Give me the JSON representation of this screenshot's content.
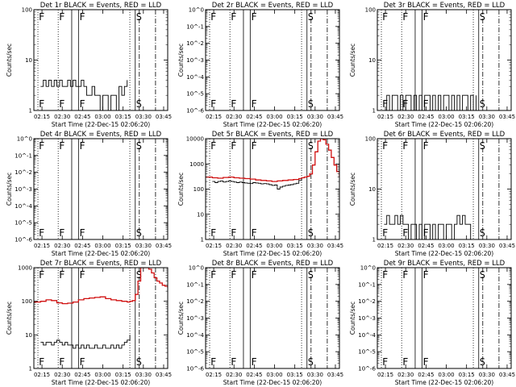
{
  "xlabel": "Start Time (22-Dec-15 02:06:20)",
  "ylabel": "Counts/sec",
  "x_ticks": [
    "02:15",
    "02:30",
    "02:45",
    "03:00",
    "03:15",
    "03:30",
    "03:45"
  ],
  "x_tick_minutes": [
    15,
    30,
    45,
    60,
    75,
    90,
    105
  ],
  "x_range_minutes": [
    9,
    108
  ],
  "event_lines_minutes": [
    {
      "t": 12,
      "style": "dotted",
      "flag": "F"
    },
    {
      "t": 27,
      "style": "dotted",
      "flag": "F"
    },
    {
      "t": 37,
      "style": "solid"
    },
    {
      "t": 42,
      "style": "solid",
      "flag": "F"
    },
    {
      "t": 80,
      "style": "dotted"
    },
    {
      "t": 84,
      "style": "solid",
      "flag": "S"
    },
    {
      "t": 87,
      "style": "dashdot"
    },
    {
      "t": 99,
      "style": "dashdot"
    }
  ],
  "colors": {
    "events": "#000000",
    "lld": "#d01010"
  },
  "chart_data": [
    {
      "type": "line",
      "title": "Det 1r BLACK = Events, RED = LLD",
      "yscale": "log",
      "ylim": [
        1,
        100
      ],
      "y_ticks": [
        1,
        10,
        100
      ],
      "y_tick_labels": [
        "1",
        "10",
        "100"
      ],
      "series": [
        {
          "name": "Events",
          "color": "#000000",
          "x": [
            14,
            16,
            18,
            20,
            22,
            24,
            26,
            28,
            30,
            32,
            34,
            36,
            38,
            40,
            42,
            44,
            46,
            48,
            50,
            52,
            54,
            56,
            58,
            60,
            62,
            64,
            66,
            68,
            70,
            72,
            74,
            76,
            78
          ],
          "y": [
            3,
            4,
            3,
            4,
            3,
            4,
            3,
            4,
            3,
            3,
            4,
            3,
            4,
            3,
            3,
            4,
            3,
            2,
            2,
            3,
            2,
            2,
            1,
            2,
            2,
            1,
            2,
            2,
            1,
            3,
            2,
            3,
            4
          ]
        }
      ]
    },
    {
      "type": "line",
      "title": "Det 2r BLACK = Events, RED = LLD",
      "yscale": "log",
      "ylim": [
        1e-06,
        1
      ],
      "y_ticks": [
        1e-06,
        1e-05,
        0.0001,
        0.001,
        0.01,
        0.1,
        1
      ],
      "y_tick_labels": [
        "10^-6",
        "10^-5",
        "10^-4",
        "10^-3",
        "10^-2",
        "10^-1",
        "10^0"
      ],
      "series": []
    },
    {
      "type": "line",
      "title": "Det 3r BLACK = Events, RED = LLD",
      "yscale": "log",
      "ylim": [
        1,
        100
      ],
      "y_ticks": [
        1,
        10,
        100
      ],
      "y_tick_labels": [
        "1",
        "10",
        "100"
      ],
      "series": [
        {
          "name": "Events",
          "color": "#000000",
          "x": [
            14,
            16,
            18,
            20,
            22,
            24,
            26,
            28,
            30,
            32,
            34,
            36,
            38,
            40,
            42,
            44,
            46,
            48,
            50,
            52,
            54,
            56,
            58,
            60,
            62,
            64,
            66,
            68,
            70,
            72,
            74,
            76,
            78,
            80,
            82
          ],
          "y": [
            1,
            2,
            1,
            2,
            2,
            1,
            2,
            1,
            2,
            2,
            1,
            2,
            1,
            2,
            1,
            2,
            2,
            1,
            2,
            1,
            2,
            1,
            2,
            2,
            1,
            2,
            1,
            2,
            1,
            2,
            2,
            1,
            2,
            1,
            2
          ]
        }
      ]
    },
    {
      "type": "line",
      "title": "Det 4r BLACK = Events, RED = LLD",
      "yscale": "log",
      "ylim": [
        1e-06,
        1
      ],
      "y_ticks": [
        1e-06,
        1e-05,
        0.0001,
        0.001,
        0.01,
        0.1,
        1
      ],
      "y_tick_labels": [
        "10^-6",
        "10^-5",
        "10^-4",
        "10^-3",
        "10^-2",
        "10^-1",
        "10^0"
      ],
      "series": []
    },
    {
      "type": "line",
      "title": "Det 5r BLACK = Events, RED = LLD",
      "yscale": "log",
      "ylim": [
        1,
        10000
      ],
      "y_ticks": [
        1,
        10,
        100,
        1000,
        10000
      ],
      "y_tick_labels": [
        "1",
        "10",
        "100",
        "1000",
        "10000"
      ],
      "series": [
        {
          "name": "LLD",
          "color": "#d01010",
          "x": [
            9,
            14,
            18,
            22,
            26,
            30,
            34,
            38,
            42,
            46,
            50,
            54,
            58,
            62,
            66,
            70,
            74,
            78,
            80,
            82,
            84,
            86,
            88,
            90,
            92,
            94,
            96,
            98,
            100,
            102,
            104,
            106,
            108
          ],
          "y": [
            300,
            280,
            270,
            290,
            300,
            280,
            270,
            260,
            250,
            230,
            220,
            210,
            200,
            210,
            220,
            230,
            240,
            260,
            280,
            300,
            320,
            400,
            900,
            3000,
            8000,
            12000,
            9000,
            6000,
            3500,
            1800,
            900,
            500,
            300
          ]
        },
        {
          "name": "Events",
          "color": "#000000",
          "x": [
            14,
            16,
            18,
            20,
            22,
            24,
            26,
            28,
            30,
            32,
            34,
            36,
            38,
            40,
            42,
            44,
            46,
            48,
            50,
            52,
            54,
            56,
            58,
            60,
            62,
            64,
            66,
            68,
            70,
            72,
            74,
            76,
            78,
            80
          ],
          "y": [
            200,
            180,
            200,
            210,
            190,
            200,
            210,
            200,
            190,
            180,
            190,
            180,
            175,
            170,
            165,
            180,
            175,
            170,
            160,
            165,
            160,
            150,
            140,
            145,
            100,
            120,
            130,
            140,
            145,
            150,
            160,
            170,
            220,
            260
          ]
        }
      ]
    },
    {
      "type": "line",
      "title": "Det 6r BLACK = Events, RED = LLD",
      "yscale": "log",
      "ylim": [
        1,
        100
      ],
      "y_ticks": [
        1,
        10,
        100
      ],
      "y_tick_labels": [
        "1",
        "10",
        "100"
      ],
      "series": [
        {
          "name": "Events",
          "color": "#000000",
          "x": [
            14,
            16,
            18,
            20,
            22,
            24,
            26,
            28,
            30,
            32,
            34,
            36,
            38,
            40,
            42,
            44,
            46,
            48,
            50,
            52,
            54,
            56,
            58,
            60,
            62,
            64,
            66,
            68,
            70,
            72,
            74,
            76,
            78
          ],
          "y": [
            2,
            3,
            2,
            2,
            3,
            2,
            3,
            2,
            2,
            1,
            2,
            2,
            1,
            2,
            1,
            2,
            2,
            1,
            2,
            1,
            2,
            2,
            1,
            2,
            2,
            1,
            2,
            3,
            2,
            3,
            2,
            2,
            1
          ]
        }
      ]
    },
    {
      "type": "line",
      "title": "Det 7r BLACK = Events, RED = LLD",
      "yscale": "log",
      "ylim": [
        1,
        1000
      ],
      "y_ticks": [
        1,
        10,
        100,
        1000
      ],
      "y_tick_labels": [
        "1",
        "10",
        "100",
        "1000"
      ],
      "series": [
        {
          "name": "LLD",
          "color": "#d01010",
          "x": [
            9,
            14,
            18,
            22,
            26,
            30,
            34,
            38,
            42,
            46,
            50,
            54,
            58,
            62,
            66,
            70,
            74,
            78,
            80,
            82,
            84,
            86,
            88,
            90,
            92,
            94,
            96,
            98,
            100,
            102,
            104,
            106,
            108
          ],
          "y": [
            95,
            100,
            110,
            105,
            90,
            85,
            88,
            95,
            110,
            120,
            125,
            130,
            135,
            120,
            110,
            105,
            100,
            95,
            100,
            105,
            160,
            400,
            1100,
            1500,
            1200,
            900,
            700,
            500,
            400,
            350,
            300,
            280,
            250
          ]
        },
        {
          "name": "Events",
          "color": "#000000",
          "x": [
            14,
            16,
            18,
            20,
            22,
            24,
            26,
            28,
            30,
            32,
            34,
            36,
            38,
            40,
            42,
            44,
            46,
            48,
            50,
            52,
            54,
            56,
            58,
            60,
            62,
            64,
            66,
            68,
            70,
            72,
            74,
            76,
            78,
            80
          ],
          "y": [
            6,
            5,
            6,
            6,
            5,
            6,
            7,
            6,
            5,
            6,
            5,
            5,
            4,
            5,
            4,
            5,
            4,
            5,
            4,
            4,
            5,
            4,
            4,
            5,
            4,
            4,
            5,
            4,
            5,
            4,
            5,
            6,
            7,
            10
          ]
        }
      ]
    },
    {
      "type": "line",
      "title": "Det 8r BLACK = Events, RED = LLD",
      "yscale": "log",
      "ylim": [
        1e-06,
        1
      ],
      "y_ticks": [
        1e-06,
        1e-05,
        0.0001,
        0.001,
        0.01,
        0.1,
        1
      ],
      "y_tick_labels": [
        "10^-6",
        "10^-5",
        "10^-4",
        "10^-3",
        "10^-2",
        "10^-1",
        "10^0"
      ],
      "series": []
    },
    {
      "type": "line",
      "title": "Det 9r BLACK = Events, RED = LLD",
      "yscale": "log",
      "ylim": [
        1e-06,
        1
      ],
      "y_ticks": [
        1e-06,
        1e-05,
        0.0001,
        0.001,
        0.01,
        0.1,
        1
      ],
      "y_tick_labels": [
        "10^-6",
        "10^-5",
        "10^-4",
        "10^-3",
        "10^-2",
        "10^-1",
        "10^0"
      ],
      "series": []
    }
  ]
}
